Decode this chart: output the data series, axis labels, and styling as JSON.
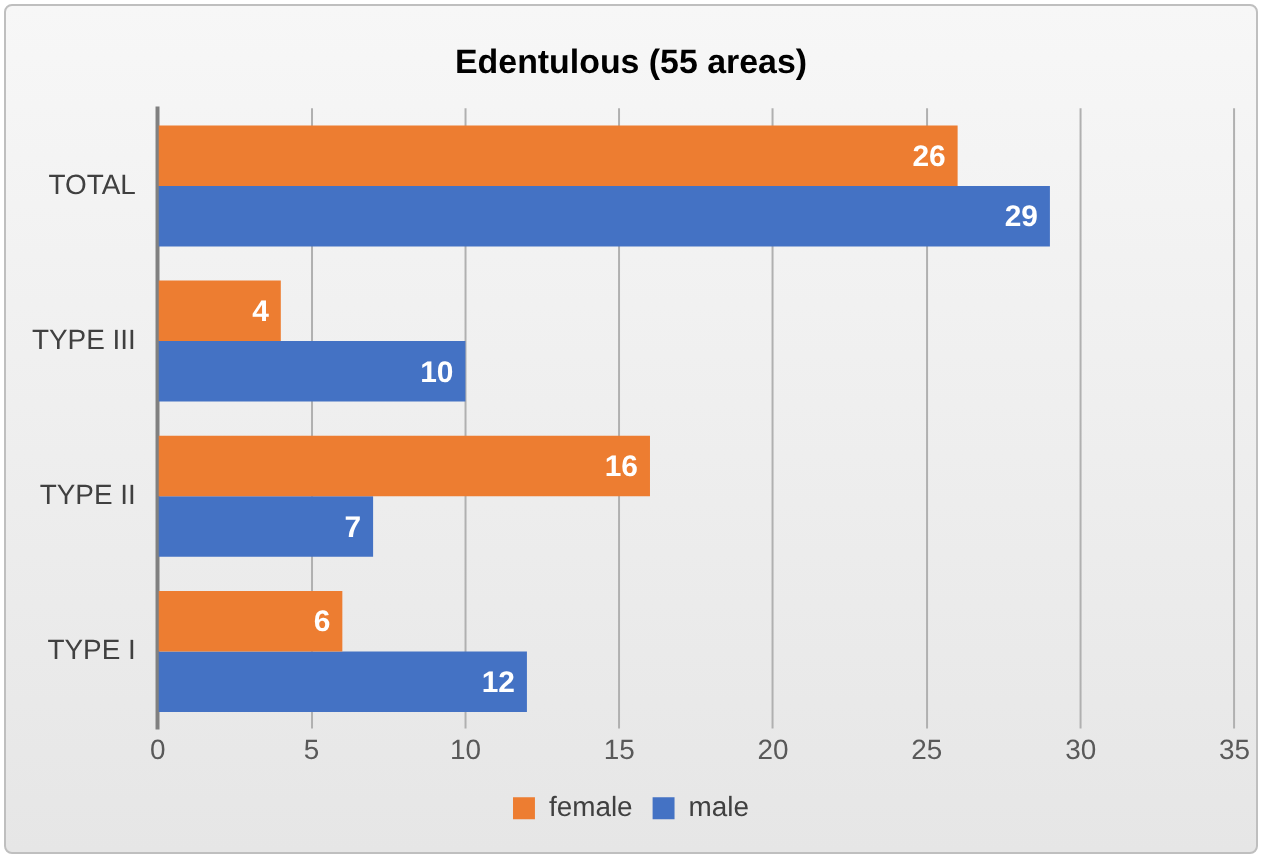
{
  "chart_data": {
    "type": "bar",
    "orientation": "horizontal",
    "title": "Edentulous (55 areas)",
    "categories": [
      "TOTAL",
      "TYPE III",
      "TYPE II",
      "TYPE I"
    ],
    "series": [
      {
        "name": "female",
        "color": "#ed7d31",
        "values": [
          26,
          4,
          16,
          6
        ]
      },
      {
        "name": "male",
        "color": "#4472c4",
        "values": [
          29,
          10,
          7,
          12
        ]
      }
    ],
    "xlim": [
      0,
      35
    ],
    "xticks": [
      0,
      5,
      10,
      15,
      20,
      25,
      30,
      35
    ],
    "grid": "x",
    "legend": "bottom",
    "data_labels": true
  }
}
